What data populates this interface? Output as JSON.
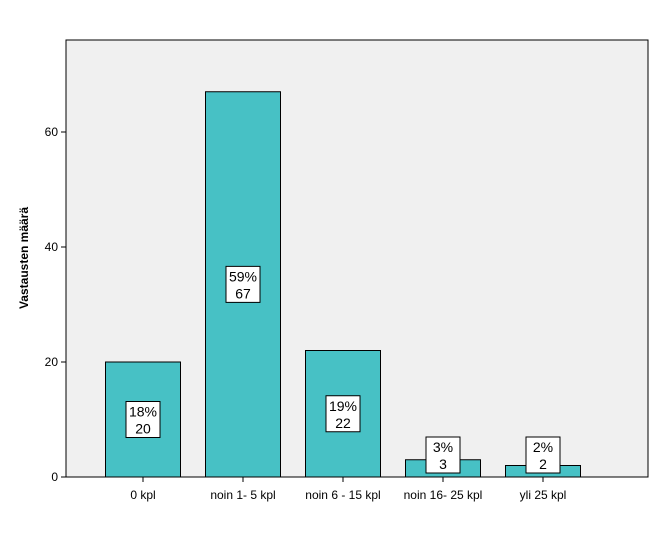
{
  "chart_data": {
    "type": "bar",
    "categories": [
      "0 kpl",
      "noin 1- 5 kpl",
      "noin 6 - 15 kpl",
      "noin 16- 25 kpl",
      "yli 25 kpl"
    ],
    "values": [
      20,
      67,
      22,
      3,
      2
    ],
    "percent_labels": [
      "18%",
      "59%",
      "19%",
      "3%",
      "2%"
    ],
    "count_labels": [
      "20",
      "67",
      "22",
      "3",
      "2"
    ],
    "title": "",
    "xlabel": "",
    "ylabel": "Vastausten määrä",
    "ylim": [
      0,
      76
    ],
    "yticks": [
      0,
      20,
      40,
      60
    ],
    "ytick_labels": [
      "0",
      "20",
      "40",
      "60"
    ],
    "grid": false,
    "bar_color": "#47c1c5",
    "plot_background": "#f0f0f0"
  }
}
